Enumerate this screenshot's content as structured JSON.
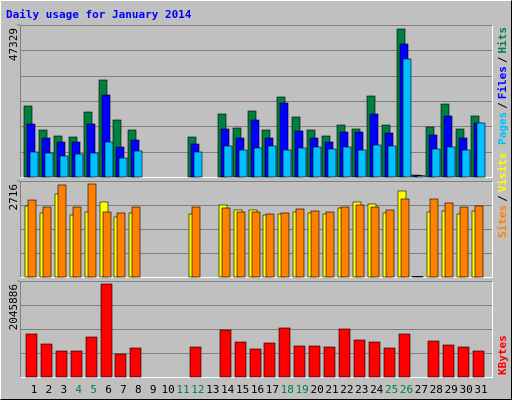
{
  "title": "Daily usage for January 2014",
  "legend_separator": "/",
  "chart_data": [
    {
      "type": "bar",
      "ylim": [
        0,
        47329
      ],
      "yticks": [
        47329
      ],
      "series": [
        {
          "name": "Hits",
          "color": "#008040",
          "values": [
            22107,
            14635,
            12766,
            12455,
            20239,
            30203,
            17748,
            14635,
            0,
            0,
            0,
            12455,
            0,
            19616,
            15257,
            20550,
            14635,
            24910,
            18682,
            14635,
            12766,
            16191,
            14946,
            25221,
            16191,
            46083,
            600,
            15569,
            22730,
            14946,
            18994
          ]
        },
        {
          "name": "Files",
          "color": "#0000FF",
          "values": [
            16503,
            12143,
            10898,
            10898,
            16503,
            25532,
            9341,
            11521,
            0,
            0,
            0,
            10275,
            0,
            14946,
            12143,
            17748,
            12143,
            23041,
            14323,
            12143,
            10898,
            14012,
            14012,
            19616,
            13700,
            41413,
            500,
            13077,
            18994,
            12143,
            16814
          ]
        },
        {
          "name": "Pages",
          "color": "#00C0FF",
          "values": [
            7784,
            7473,
            6539,
            7161,
            7473,
            10898,
            5916,
            8095,
            0,
            0,
            0,
            7784,
            0,
            9652,
            8407,
            9030,
            9652,
            8407,
            9030,
            9341,
            8718,
            9341,
            8407,
            9964,
            9652,
            36742,
            400,
            8718,
            9341,
            8407,
            16814
          ]
        }
      ]
    },
    {
      "type": "bar",
      "ylim": [
        0,
        2716
      ],
      "yticks": [
        2716
      ],
      "series": [
        {
          "name": "Visits",
          "color": "#FFFF00",
          "values": [
            2009,
            1811,
            2348,
            1754,
            1839,
            2122,
            1698,
            1811,
            0,
            0,
            0,
            1782,
            0,
            2037,
            1896,
            1896,
            1754,
            1782,
            1839,
            1811,
            1782,
            1952,
            2122,
            2065,
            1811,
            2433,
            20,
            1839,
            1867,
            1782,
            1867
          ]
        },
        {
          "name": "Sites",
          "color": "#FF8000",
          "values": [
            2178,
            1980,
            2603,
            1980,
            2631,
            1839,
            1811,
            1980,
            0,
            0,
            0,
            1980,
            0,
            1952,
            1839,
            1839,
            1782,
            1811,
            1924,
            1867,
            1839,
            1980,
            2037,
            1980,
            1896,
            2207,
            20,
            2207,
            2094,
            1980,
            2009
          ]
        }
      ]
    },
    {
      "type": "bar",
      "ylim": [
        0,
        2045886
      ],
      "yticks": [
        2045886
      ],
      "categories": [
        "1",
        "2",
        "3",
        "4",
        "5",
        "6",
        "7",
        "8",
        "9",
        "10",
        "11",
        "12",
        "13",
        "14",
        "15",
        "16",
        "17",
        "18",
        "19",
        "20",
        "21",
        "22",
        "23",
        "24",
        "25",
        "26",
        "27",
        "28",
        "29",
        "30",
        "31"
      ],
      "category_colors": [
        "#000000",
        "#000000",
        "#000000",
        "#008040",
        "#008040",
        "#000000",
        "#000000",
        "#000000",
        "#000000",
        "#000000",
        "#008040",
        "#008040",
        "#000000",
        "#000000",
        "#000000",
        "#000000",
        "#000000",
        "#008040",
        "#008040",
        "#000000",
        "#000000",
        "#000000",
        "#000000",
        "#000000",
        "#008040",
        "#008040",
        "#000000",
        "#000000",
        "#000000",
        "#000000",
        "#000000"
      ],
      "series": [
        {
          "name": "KBytes",
          "color": "#FF0000",
          "values": [
            916449,
            703273,
            554094,
            554094,
            852453,
            1981952,
            490161,
            618028,
            0,
            0,
            0,
            639339,
            0,
            1001692,
            745896,
            596717,
            724585,
            1044315,
            660650,
            660650,
            639339,
            1023003,
            788519,
            745896,
            618028,
            916449,
            0,
            767207,
            681962,
            639339,
            554094
          ]
        }
      ]
    }
  ]
}
